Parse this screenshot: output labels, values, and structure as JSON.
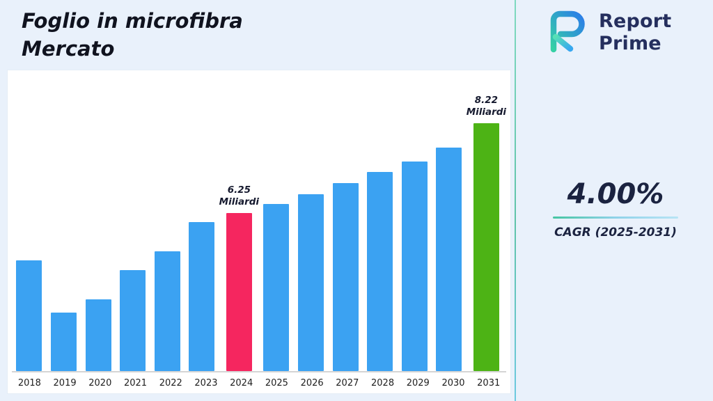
{
  "header": {
    "title_line1": "Foglio in microfibra",
    "title_line2": "Mercato"
  },
  "logo": {
    "name": "Report Prime",
    "line1": "Report",
    "line2": "Prime"
  },
  "stats": {
    "cagr_value": "4.00%",
    "cagr_label": "CAGR (2025-2031)"
  },
  "chart_data": {
    "type": "bar",
    "title": "Foglio in microfibra Mercato",
    "unit": "Miliardi",
    "categories": [
      "2018",
      "2019",
      "2020",
      "2021",
      "2022",
      "2023",
      "2024",
      "2025",
      "2026",
      "2027",
      "2028",
      "2029",
      "2030",
      "2031"
    ],
    "values": [
      5.22,
      4.08,
      4.36,
      5.0,
      5.42,
      6.05,
      6.25,
      6.45,
      6.66,
      6.9,
      7.15,
      7.37,
      7.68,
      8.22
    ],
    "annotations": [
      {
        "category": "2024",
        "lines": [
          "6.25",
          "Miliardi"
        ]
      },
      {
        "category": "2031",
        "lines": [
          "8.22",
          "Miliardi"
        ]
      }
    ],
    "colors": {
      "default": "#3BA2F2",
      "highlights": {
        "2024": "#F5265F",
        "2031": "#4DB315"
      }
    },
    "ylim": [
      2.8,
      9.4
    ],
    "xlabel": "",
    "ylabel": "",
    "grid": false,
    "legend": false
  }
}
